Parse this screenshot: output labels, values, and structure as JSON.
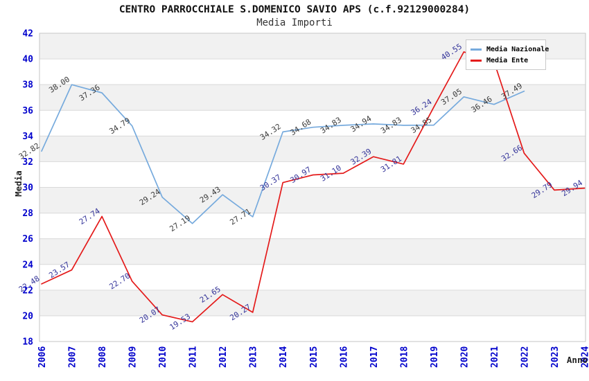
{
  "header": {
    "title": "CENTRO PARROCCHIALE S.DOMENICO SAVIO APS (c.f.92129000284)",
    "subtitle": "Media Importi"
  },
  "legend": {
    "items": [
      {
        "label": "Media Nazionale",
        "color": "#76aadd"
      },
      {
        "label": "Media Ente",
        "color": "#e41a1a"
      }
    ]
  },
  "colors": {
    "tick_text": "#0000cc",
    "nazionale_line": "#76aadd",
    "ente_line": "#e41a1a",
    "nazionale_label_text": "#3a3a3a",
    "ente_label_text": "#333399",
    "band_gray": "#f1f1f1",
    "band_white": "#ffffff",
    "gridline": "#d9d9d9",
    "plot_border": "#c6c6c6",
    "axis_title_text": "#222222"
  },
  "chart_data": {
    "type": "line",
    "title": "CENTRO PARROCCHIALE S.DOMENICO SAVIO APS (c.f.92129000284)",
    "subtitle": "Media Importi",
    "xlabel": "Anno",
    "ylabel": "Media",
    "ylim": [
      18,
      42
    ],
    "y_tick_step": 2,
    "y_ticks": [
      18,
      20,
      22,
      24,
      26,
      28,
      30,
      32,
      34,
      36,
      38,
      40,
      42
    ],
    "x_ticks": [
      2006,
      2007,
      2008,
      2009,
      2010,
      2011,
      2012,
      2013,
      2014,
      2015,
      2016,
      2017,
      2018,
      2019,
      2020,
      2021,
      2022,
      2023,
      2024
    ],
    "grid": "horizontal gridlines every 2 units with alternating gray/white bands",
    "legend_position": "top-right",
    "series": [
      {
        "name": "Media Nazionale",
        "color": "#76aadd",
        "label_color": "#3a3a3a",
        "points": [
          {
            "x": 2006,
            "y": 32.82,
            "label": "32.82"
          },
          {
            "x": 2007,
            "y": 38.0,
            "label": "38.00"
          },
          {
            "x": 2008,
            "y": 37.36,
            "label": "37.36"
          },
          {
            "x": 2009,
            "y": 34.79,
            "label": "34.79"
          },
          {
            "x": 2010,
            "y": 29.24,
            "label": "29.24"
          },
          {
            "x": 2011,
            "y": 27.19,
            "label": "27.19"
          },
          {
            "x": 2012,
            "y": 29.43,
            "label": "29.43"
          },
          {
            "x": 2013,
            "y": 27.71,
            "label": "27.71"
          },
          {
            "x": 2014,
            "y": 34.32,
            "label": "34.32"
          },
          {
            "x": 2015,
            "y": 34.68,
            "label": "34.68"
          },
          {
            "x": 2016,
            "y": 34.83,
            "label": "34.83"
          },
          {
            "x": 2017,
            "y": 34.94,
            "label": "34.94"
          },
          {
            "x": 2018,
            "y": 34.83,
            "label": "34.83"
          },
          {
            "x": 2019,
            "y": 34.85,
            "label": "34.85"
          },
          {
            "x": 2020,
            "y": 37.05,
            "label": "37.05"
          },
          {
            "x": 2021,
            "y": 36.46,
            "label": "36.46"
          },
          {
            "x": 2022,
            "y": 37.49,
            "label": "37.49"
          }
        ]
      },
      {
        "name": "Media Ente",
        "color": "#e41a1a",
        "label_color": "#333399",
        "points": [
          {
            "x": 2006,
            "y": 22.48,
            "label": "22.48"
          },
          {
            "x": 2007,
            "y": 23.57,
            "label": "23.57"
          },
          {
            "x": 2008,
            "y": 27.74,
            "label": "27.74"
          },
          {
            "x": 2009,
            "y": 22.7,
            "label": "22.70"
          },
          {
            "x": 2010,
            "y": 20.07,
            "label": "20.07"
          },
          {
            "x": 2011,
            "y": 19.53,
            "label": "19.53"
          },
          {
            "x": 2012,
            "y": 21.65,
            "label": "21.65"
          },
          {
            "x": 2013,
            "y": 20.27,
            "label": "20.27"
          },
          {
            "x": 2014,
            "y": 30.37,
            "label": "30.37"
          },
          {
            "x": 2015,
            "y": 30.97,
            "label": "30.97"
          },
          {
            "x": 2016,
            "y": 31.1,
            "label": "31.10"
          },
          {
            "x": 2017,
            "y": 32.39,
            "label": "32.39"
          },
          {
            "x": 2018,
            "y": 31.81,
            "label": "31.81"
          },
          {
            "x": 2019,
            "y": 36.24,
            "label": "36.24"
          },
          {
            "x": 2020,
            "y": 40.55,
            "label": "40.55"
          },
          {
            "x": 2021,
            "y": 39.8,
            "label": null
          },
          {
            "x": 2022,
            "y": 32.66,
            "label": "32.66"
          },
          {
            "x": 2023,
            "y": 29.79,
            "label": "29.79"
          },
          {
            "x": 2024,
            "y": 29.94,
            "label": "29.94"
          }
        ]
      }
    ]
  }
}
